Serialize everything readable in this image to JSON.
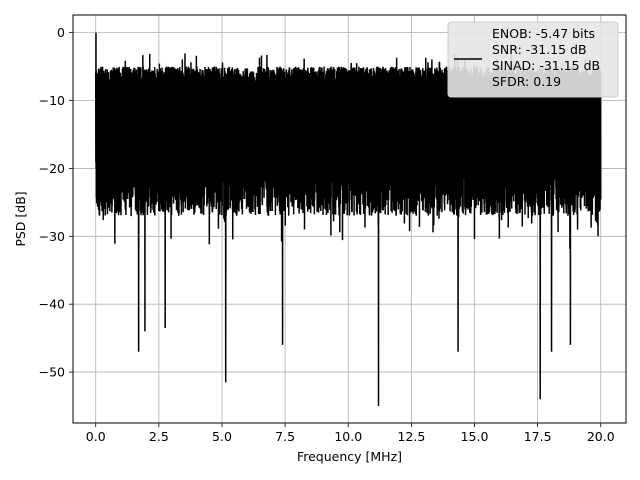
{
  "chart_data": {
    "type": "line",
    "xlabel": "Frequency [MHz]",
    "ylabel": "PSD [dB]",
    "xlim": [
      -0.9,
      21.0
    ],
    "ylim": [
      -57.5,
      2.6
    ],
    "grid": true,
    "xticks": [
      0.0,
      2.5,
      5.0,
      7.5,
      10.0,
      12.5,
      15.0,
      17.5,
      20.0
    ],
    "xtick_labels": [
      "0.0",
      "2.5",
      "5.0",
      "7.5",
      "10.0",
      "12.5",
      "15.0",
      "17.5",
      "20.0"
    ],
    "yticks": [
      0,
      -10,
      -20,
      -30,
      -40,
      -50
    ],
    "ytick_labels": [
      "0",
      "−10",
      "−20",
      "−30",
      "−40",
      "−50"
    ],
    "legend_placement": "upper-right",
    "legend_lines": [
      "ENOB: -5.47 bits",
      "SNR: -31.15 dB",
      "SINAD: -31.15 dB",
      "SFDR: 0.19"
    ],
    "series": [
      {
        "color": "#000000",
        "x_range": [
          0.0,
          20.0
        ],
        "points": 4096,
        "envelope_top": -5,
        "envelope_bottom": -27,
        "peak_value": 0.0,
        "dips": [
          {
            "x": 1.7,
            "y": -47
          },
          {
            "x": 1.95,
            "y": -44
          },
          {
            "x": 2.75,
            "y": -43.5
          },
          {
            "x": 5.15,
            "y": -51.5
          },
          {
            "x": 7.4,
            "y": -46
          },
          {
            "x": 11.2,
            "y": -55
          },
          {
            "x": 14.35,
            "y": -47
          },
          {
            "x": 17.6,
            "y": -54
          },
          {
            "x": 18.05,
            "y": -47
          },
          {
            "x": 18.8,
            "y": -46
          }
        ]
      }
    ]
  }
}
